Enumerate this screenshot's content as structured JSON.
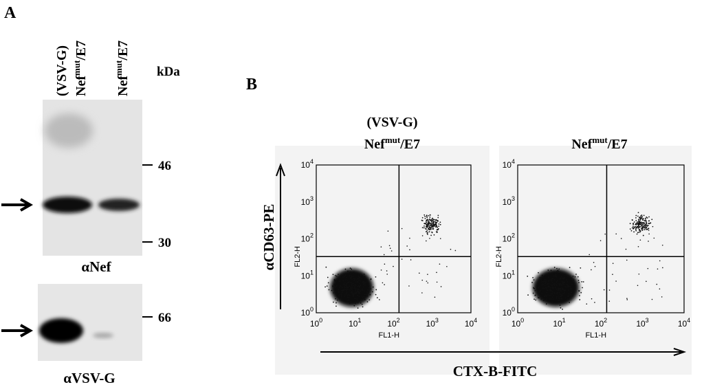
{
  "panel_a": {
    "label": "A",
    "lane_1": {
      "line1": "(VSV-G)",
      "base": "Nef",
      "sup": "mut",
      "rest": "/E7"
    },
    "lane_2": {
      "base": "Nef",
      "sup": "mut",
      "rest": "/E7"
    },
    "unit": "kDa",
    "blot_nef": {
      "markers": [
        46,
        30
      ],
      "caption": "αNef"
    },
    "blot_vsvg": {
      "markers": [
        66
      ],
      "caption": "αVSV-G"
    }
  },
  "panel_b": {
    "label": "B",
    "plots": [
      {
        "line1": "(VSV-G)",
        "base": "Nef",
        "sup": "mut",
        "rest": "/E7"
      },
      {
        "base": "Nef",
        "sup": "mut",
        "rest": "/E7"
      }
    ],
    "y_label": "αCD63-PE",
    "x_label": "CTX-B-FITC",
    "y_channel": "FL2-H",
    "x_channel": "FL1-H",
    "tick_base": "10",
    "tick_exps": [
      "0",
      "1",
      "2",
      "3",
      "4"
    ]
  }
}
